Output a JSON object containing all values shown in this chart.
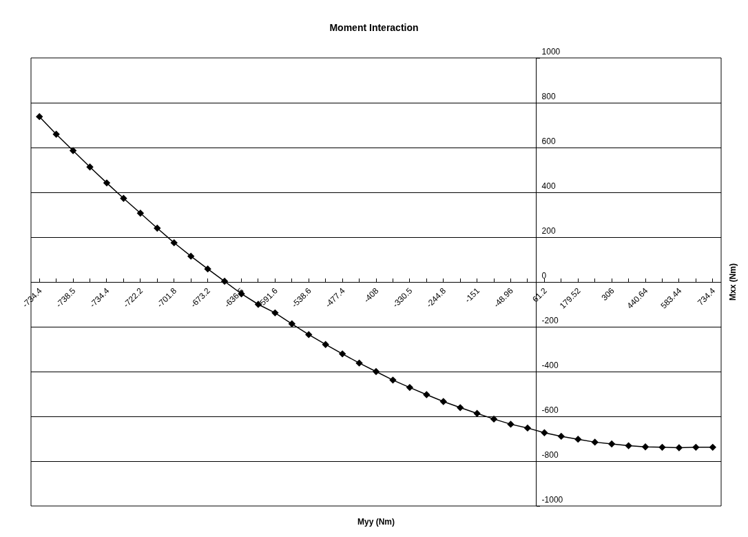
{
  "chart_data": {
    "type": "line",
    "title": "Moment Interaction",
    "xlabel": "Myy (Nm)",
    "ylabel": "Mxx (Nm)",
    "categories": [
      "-734.4",
      null,
      "-738.5",
      null,
      "-734.4",
      null,
      "-722.2",
      null,
      "-701.8",
      null,
      "-673.2",
      null,
      "-636.5",
      null,
      "-591.6",
      null,
      "-538.6",
      null,
      "-477.4",
      null,
      "-408",
      null,
      "-330.5",
      null,
      "-244.8",
      null,
      "-151",
      null,
      "-48.96",
      null,
      "61.2",
      null,
      "179.52",
      null,
      "306",
      null,
      "440.64",
      null,
      "583.44",
      null,
      "734.4"
    ],
    "series": [
      {
        "color": "#000000",
        "values": [
          738,
          659,
          586,
          513,
          442,
          373,
          307,
          240,
          175,
          115,
          58,
          3,
          -53,
          -100,
          -138,
          -187,
          -235,
          -279,
          -321,
          -362,
          -400,
          -438,
          -471,
          -503,
          -534,
          -561,
          -587,
          -612,
          -635,
          -652,
          -673,
          -689,
          -702,
          -715,
          -723,
          -731,
          -736,
          -738,
          -740,
          -738,
          -738
        ]
      }
    ],
    "ylim": [
      -1000,
      1000
    ],
    "yticks": [
      -1000,
      -800,
      -600,
      -400,
      -200,
      0,
      200,
      400,
      600,
      800,
      1000
    ],
    "grid": "y",
    "marker": "diamond",
    "line_style": "solid"
  }
}
